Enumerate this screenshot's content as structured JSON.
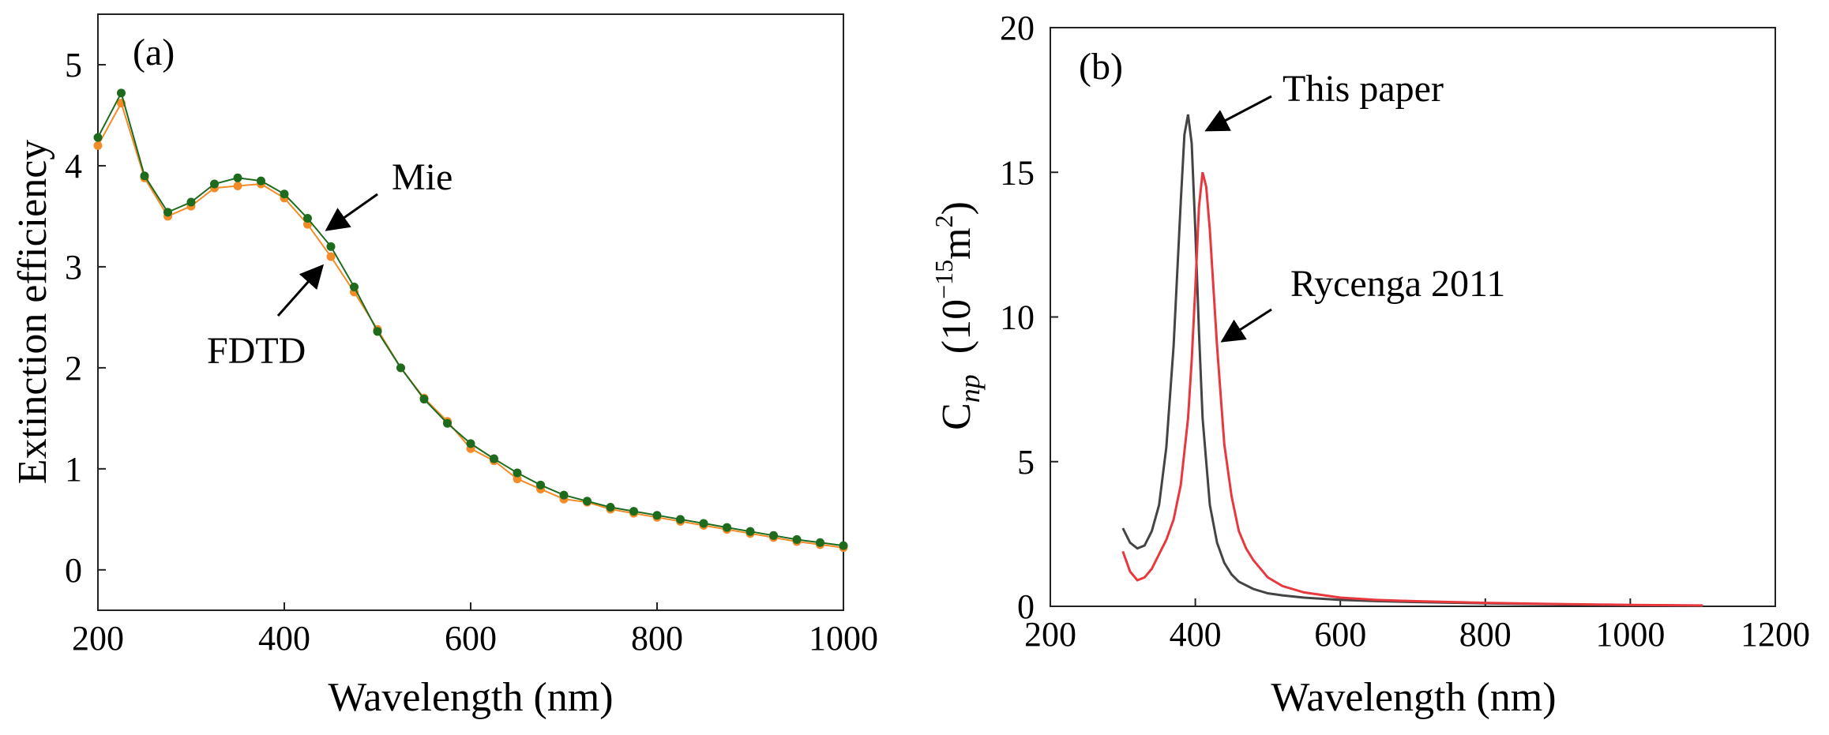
{
  "chart_data": [
    {
      "type": "line",
      "panel_label": "(a)",
      "xlabel": "Wavelength (nm)",
      "ylabel": "Extinction efficiency",
      "xlim": [
        200,
        1000
      ],
      "ylim": [
        -0.4,
        5.5
      ],
      "xticks": [
        200,
        400,
        600,
        800,
        1000
      ],
      "yticks": [
        0,
        1,
        2,
        3,
        4,
        5
      ],
      "x": [
        200,
        225,
        250,
        275,
        300,
        325,
        350,
        375,
        400,
        425,
        450,
        475,
        500,
        525,
        550,
        575,
        600,
        625,
        650,
        675,
        700,
        725,
        750,
        775,
        800,
        825,
        850,
        875,
        900,
        925,
        950,
        975,
        1000
      ],
      "series": [
        {
          "name": "FDTD",
          "color": "#f28c28",
          "marker": "circle",
          "values": [
            4.2,
            4.62,
            3.88,
            3.5,
            3.6,
            3.78,
            3.8,
            3.82,
            3.68,
            3.42,
            3.1,
            2.75,
            2.38,
            2.0,
            1.7,
            1.47,
            1.2,
            1.08,
            0.9,
            0.8,
            0.7,
            0.67,
            0.6,
            0.56,
            0.52,
            0.48,
            0.44,
            0.4,
            0.36,
            0.32,
            0.28,
            0.25,
            0.22
          ]
        },
        {
          "name": "Mie",
          "color": "#1e6b1e",
          "marker": "circle",
          "values": [
            4.28,
            4.72,
            3.9,
            3.54,
            3.64,
            3.82,
            3.88,
            3.85,
            3.72,
            3.48,
            3.2,
            2.8,
            2.36,
            2.0,
            1.69,
            1.45,
            1.25,
            1.1,
            0.96,
            0.84,
            0.74,
            0.68,
            0.62,
            0.58,
            0.54,
            0.5,
            0.46,
            0.42,
            0.38,
            0.34,
            0.3,
            0.27,
            0.24
          ]
        }
      ],
      "annotations": [
        {
          "text": "Mie",
          "points_to": [
            450,
            3.2
          ]
        },
        {
          "text": "FDTD",
          "points_to": [
            450,
            3.1
          ]
        }
      ]
    },
    {
      "type": "line",
      "panel_label": "(b)",
      "xlabel": "Wavelength (nm)",
      "ylabel_main": "C",
      "ylabel_sub": "np",
      "ylabel_unit_open": "(10",
      "ylabel_unit_exp": "−15",
      "ylabel_unit_m": "m",
      "ylabel_unit_sq": "2",
      "ylabel_unit_close": ")",
      "xlim": [
        200,
        1200
      ],
      "ylim": [
        0,
        20
      ],
      "xticks": [
        200,
        400,
        600,
        800,
        1000,
        1200
      ],
      "yticks": [
        0,
        5,
        10,
        15,
        20
      ],
      "series": [
        {
          "name": "This paper",
          "color": "#444444",
          "x": [
            300,
            310,
            320,
            330,
            340,
            350,
            360,
            370,
            380,
            385,
            390,
            395,
            400,
            405,
            410,
            420,
            430,
            440,
            450,
            460,
            480,
            500,
            520,
            550,
            600,
            650,
            700,
            800,
            900,
            1000,
            1100
          ],
          "y": [
            2.7,
            2.2,
            2.0,
            2.1,
            2.6,
            3.5,
            5.5,
            9.0,
            14.0,
            16.3,
            17.0,
            16.0,
            13.0,
            9.5,
            6.5,
            3.5,
            2.2,
            1.5,
            1.1,
            0.85,
            0.6,
            0.45,
            0.38,
            0.3,
            0.22,
            0.18,
            0.15,
            0.1,
            0.07,
            0.04,
            0.02
          ]
        },
        {
          "name": "Rycenga 2011",
          "color": "#e8383d",
          "x": [
            300,
            310,
            320,
            330,
            340,
            350,
            360,
            370,
            380,
            390,
            395,
            400,
            405,
            410,
            415,
            420,
            430,
            440,
            450,
            460,
            470,
            480,
            500,
            520,
            550,
            600,
            650,
            700,
            800,
            900,
            1000,
            1100
          ],
          "y": [
            1.9,
            1.2,
            0.9,
            1.0,
            1.3,
            1.8,
            2.3,
            3.0,
            4.2,
            6.5,
            8.5,
            11.0,
            13.8,
            15.0,
            14.5,
            13.0,
            9.0,
            5.6,
            3.8,
            2.6,
            2.0,
            1.6,
            1.0,
            0.7,
            0.48,
            0.3,
            0.22,
            0.18,
            0.12,
            0.08,
            0.05,
            0.03
          ]
        }
      ],
      "annotations": [
        {
          "text": "This paper",
          "points_to": [
            405,
            16.2
          ]
        },
        {
          "text": "Rycenga 2011",
          "points_to": [
            430,
            9.3
          ]
        }
      ]
    }
  ]
}
